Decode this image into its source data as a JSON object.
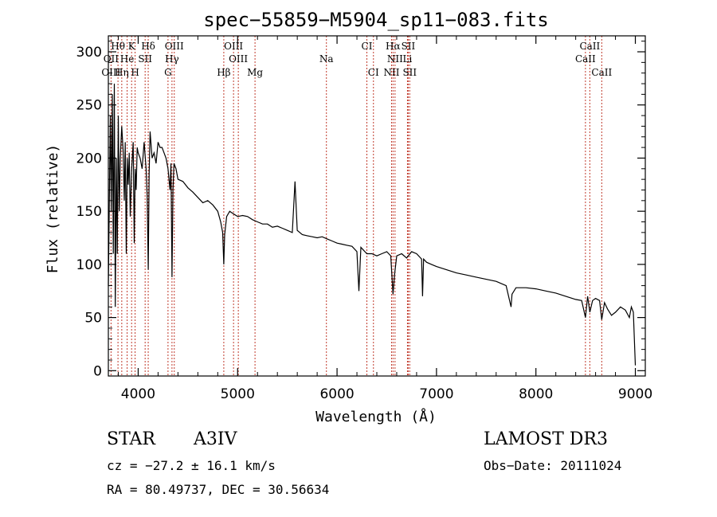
{
  "chart_data": {
    "type": "line",
    "title": "spec−55859−M5904_sp11−083.fits",
    "xlabel": "Wavelength (Å)",
    "ylabel": "Flux (relative)",
    "xlim": [
      3700,
      9100
    ],
    "ylim": [
      -5,
      315
    ],
    "xticks": [
      4000,
      5000,
      6000,
      7000,
      8000,
      9000
    ],
    "yticks": [
      0,
      50,
      100,
      150,
      200,
      250,
      300
    ],
    "grid": false,
    "series": [
      {
        "name": "flux",
        "x": [
          3700,
          3720,
          3730,
          3740,
          3750,
          3760,
          3770,
          3780,
          3790,
          3800,
          3810,
          3820,
          3835,
          3850,
          3860,
          3870,
          3880,
          3890,
          3900,
          3910,
          3920,
          3935,
          3950,
          3960,
          3970,
          3980,
          3990,
          4000,
          4020,
          4040,
          4060,
          4080,
          4090,
          4101,
          4110,
          4120,
          4140,
          4160,
          4180,
          4200,
          4220,
          4240,
          4260,
          4280,
          4300,
          4320,
          4330,
          4340,
          4350,
          4360,
          4380,
          4400,
          4450,
          4500,
          4550,
          4600,
          4650,
          4700,
          4750,
          4800,
          4830,
          4850,
          4861,
          4870,
          4890,
          4920,
          4950,
          5000,
          5050,
          5100,
          5150,
          5200,
          5250,
          5300,
          5350,
          5400,
          5450,
          5500,
          5550,
          5577,
          5600,
          5650,
          5700,
          5750,
          5800,
          5850,
          5900,
          5950,
          6000,
          6050,
          6100,
          6150,
          6200,
          6220,
          6240,
          6260,
          6280,
          6300,
          6350,
          6400,
          6450,
          6500,
          6540,
          6563,
          6580,
          6600,
          6650,
          6700,
          6750,
          6800,
          6850,
          6860,
          6870,
          6900,
          6950,
          7000,
          7100,
          7200,
          7300,
          7400,
          7500,
          7600,
          7700,
          7750,
          7760,
          7800,
          7900,
          8000,
          8100,
          8200,
          8300,
          8400,
          8460,
          8498,
          8520,
          8542,
          8570,
          8600,
          8640,
          8662,
          8690,
          8720,
          8760,
          8800,
          8850,
          8900,
          8940,
          8960,
          8980,
          9000
        ],
        "y": [
          80,
          240,
          150,
          260,
          110,
          270,
          60,
          200,
          110,
          240,
          150,
          200,
          230,
          205,
          160,
          215,
          110,
          200,
          175,
          205,
          145,
          190,
          215,
          120,
          190,
          170,
          210,
          205,
          200,
          190,
          215,
          190,
          165,
          95,
          185,
          225,
          200,
          205,
          195,
          215,
          210,
          210,
          205,
          200,
          190,
          170,
          195,
          88,
          170,
          195,
          190,
          180,
          178,
          172,
          168,
          163,
          158,
          160,
          156,
          150,
          140,
          130,
          100,
          128,
          145,
          150,
          148,
          145,
          146,
          145,
          142,
          140,
          138,
          138,
          135,
          136,
          134,
          132,
          130,
          178,
          132,
          128,
          127,
          126,
          125,
          126,
          124,
          122,
          120,
          119,
          118,
          117,
          112,
          75,
          116,
          114,
          112,
          110,
          110,
          108,
          110,
          112,
          108,
          72,
          92,
          108,
          110,
          106,
          112,
          110,
          105,
          70,
          105,
          102,
          100,
          98,
          95,
          92,
          90,
          88,
          86,
          84,
          80,
          60,
          72,
          78,
          78,
          77,
          75,
          73,
          70,
          67,
          66,
          50,
          70,
          55,
          66,
          68,
          66,
          48,
          64,
          58,
          52,
          55,
          60,
          57,
          50,
          60,
          55,
          5
        ]
      }
    ],
    "lines": [
      {
        "name": "Hθ",
        "wl": 3797,
        "row": 0
      },
      {
        "name": "K",
        "wl": 3934,
        "row": 0
      },
      {
        "name": "Hδ",
        "wl": 4101,
        "row": 0
      },
      {
        "name": "OIII",
        "wl": 4363,
        "row": 0
      },
      {
        "name": "OIII",
        "wl": 4959,
        "row": 0
      },
      {
        "name": "CI",
        "wl": 6300,
        "row": 0
      },
      {
        "name": "Hα",
        "wl": 6563,
        "row": 0
      },
      {
        "name": "SII",
        "wl": 6716,
        "row": 0
      },
      {
        "name": "CaII",
        "wl": 8542,
        "row": 0
      },
      {
        "name": "OII",
        "wl": 3727,
        "row": 1
      },
      {
        "name": "He",
        "wl": 3889,
        "row": 1
      },
      {
        "name": "SII",
        "wl": 4070,
        "row": 1
      },
      {
        "name": "Hγ",
        "wl": 4340,
        "row": 1
      },
      {
        "name": "OIII",
        "wl": 5007,
        "row": 1
      },
      {
        "name": "Na",
        "wl": 5893,
        "row": 1
      },
      {
        "name": "NII",
        "wl": 6583,
        "row": 1
      },
      {
        "name": "Li",
        "wl": 6708,
        "row": 1
      },
      {
        "name": "CaII",
        "wl": 8498,
        "row": 1
      },
      {
        "name": "OIII",
        "wl": 3727,
        "row": 2
      },
      {
        "name": "Hη",
        "wl": 3835,
        "row": 2
      },
      {
        "name": "H",
        "wl": 3969,
        "row": 2
      },
      {
        "name": "G",
        "wl": 4300,
        "row": 2
      },
      {
        "name": "Hβ",
        "wl": 4861,
        "row": 2
      },
      {
        "name": "Mg",
        "wl": 5175,
        "row": 2
      },
      {
        "name": "CI",
        "wl": 6366,
        "row": 2
      },
      {
        "name": "NII",
        "wl": 6548,
        "row": 2
      },
      {
        "name": "SII",
        "wl": 6731,
        "row": 2
      },
      {
        "name": "CaII",
        "wl": 8662,
        "row": 2
      }
    ]
  },
  "info": {
    "object_type": "STAR",
    "subclass": "A3IV",
    "survey": "LAMOST DR3",
    "redshift": "cz = −27.2 ± 16.1 km/s",
    "obs_date": "Obs−Date: 20111024",
    "coords": "RA =  80.49737, DEC =  30.56634"
  },
  "colors": {
    "spectrum": "#000000",
    "marker_lines": "#c0392b",
    "axes": "#000000"
  }
}
